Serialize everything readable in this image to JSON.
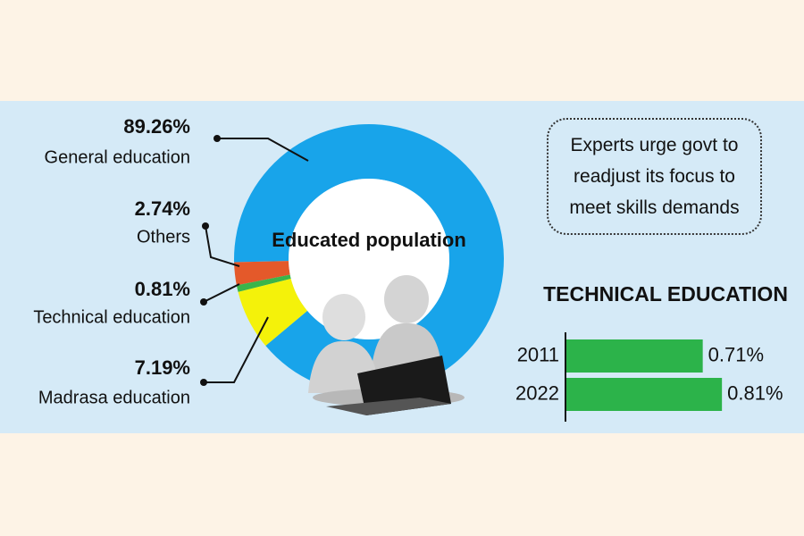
{
  "chart_data": [
    {
      "type": "donut",
      "title": "Educated population",
      "categories": [
        "General education",
        "Others",
        "Technical education",
        "Madrasa education"
      ],
      "values": [
        89.26,
        2.74,
        0.81,
        7.19
      ],
      "value_labels": [
        "89.26%",
        "2.74%",
        "0.81%",
        "7.19%"
      ],
      "colors": [
        "#18a4ea",
        "#e4592a",
        "#3bb54a",
        "#f4f20a"
      ]
    },
    {
      "type": "barh",
      "title": "TECHNICAL EDUCATION",
      "categories": [
        "2011",
        "2022"
      ],
      "values": [
        0.71,
        0.81
      ],
      "value_labels": [
        "0.71%",
        "0.81%"
      ],
      "color": "#2cb34a"
    }
  ],
  "callout": "Experts urge govt to readjust its focus to meet skills demands"
}
